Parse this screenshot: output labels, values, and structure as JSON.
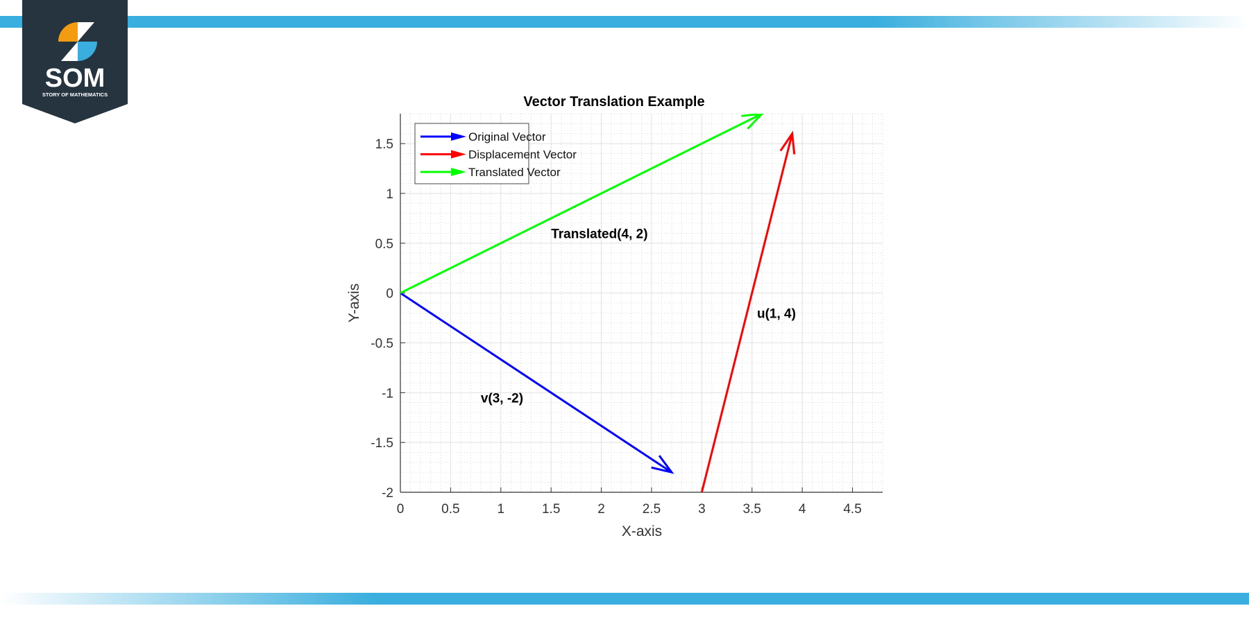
{
  "logo": {
    "text": "SOM",
    "subtitle": "STORY OF MATHEMATICS",
    "colors": {
      "badge": "#263440",
      "orange": "#f39c12",
      "blue": "#3aaede"
    }
  },
  "chart_data": {
    "type": "quiver",
    "title": "Vector Translation Example",
    "xlabel": "X-axis",
    "ylabel": "Y-axis",
    "xlim": [
      0,
      4.8
    ],
    "ylim": [
      -2,
      1.8
    ],
    "xticks": [
      "0",
      "0.5",
      "1",
      "1.5",
      "2",
      "2.5",
      "3",
      "3.5",
      "4",
      "4.5"
    ],
    "yticks": [
      "-2",
      "-1.5",
      "-1",
      "-0.5",
      "0",
      "0.5",
      "1",
      "1.5"
    ],
    "grid": "major and minor",
    "legend_position": "top-left",
    "series": [
      {
        "name": "Original Vector",
        "color": "#0000ff",
        "origin": [
          0,
          0
        ],
        "drawn_tip": [
          2.7,
          -1.8
        ]
      },
      {
        "name": "Displacement Vector",
        "color": "#ff0000",
        "origin": [
          3,
          -2
        ],
        "drawn_tip": [
          3.9,
          1.6
        ]
      },
      {
        "name": "Translated Vector",
        "color": "#00ff00",
        "origin": [
          0,
          0
        ],
        "drawn_tip": [
          3.6,
          1.8
        ]
      }
    ],
    "annotations": [
      {
        "text": "Translated(4, 2)",
        "x": 1.5,
        "y": 0.6
      },
      {
        "text": "v(3, -2)",
        "x": 0.8,
        "y": -1.05
      },
      {
        "text": "u(1, 4)",
        "x": 3.55,
        "y": -0.2
      }
    ]
  }
}
